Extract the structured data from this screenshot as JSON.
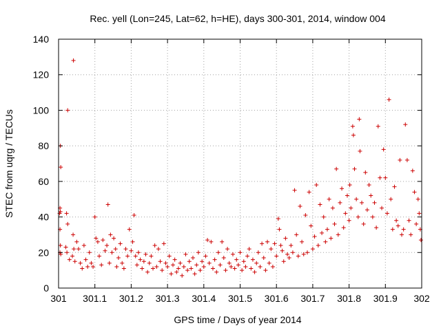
{
  "chart_data": {
    "type": "scatter",
    "title": "Rec. yell (Lon=245, Lat=62, h=HE), days 300-301, 2014, window 004",
    "xlabel": "GPS time / Days of year 2014",
    "ylabel": "STEC from uqrg / TECUs",
    "xlim": [
      301,
      302
    ],
    "ylim": [
      0,
      140
    ],
    "xticks": [
      301,
      301.1,
      301.2,
      301.3,
      301.4,
      301.5,
      301.6,
      301.7,
      301.8,
      301.9,
      302
    ],
    "xtick_labels": [
      "301",
      "301.1",
      "301.2",
      "301.3",
      "301.4",
      "301.5",
      "301.6",
      "301.7",
      "301.8",
      "301.9",
      "302"
    ],
    "yticks": [
      0,
      20,
      40,
      60,
      80,
      100,
      120,
      140
    ],
    "ytick_labels": [
      "0",
      "20",
      "40",
      "60",
      "80",
      "100",
      "120",
      "140"
    ],
    "grid": true,
    "marker": "plus",
    "color": "#cc0000",
    "series": [
      {
        "name": "STEC",
        "points": [
          [
            301.005,
            80
          ],
          [
            301.006,
            68
          ],
          [
            301.004,
            45
          ],
          [
            301.005,
            43
          ],
          [
            301.003,
            42
          ],
          [
            301.004,
            33
          ],
          [
            301.005,
            24
          ],
          [
            301.004,
            20
          ],
          [
            301.006,
            19
          ],
          [
            301.025,
            100
          ],
          [
            301.022,
            42
          ],
          [
            301.025,
            36
          ],
          [
            301.02,
            23
          ],
          [
            301.023,
            20
          ],
          [
            301.03,
            16
          ],
          [
            301.041,
            128
          ],
          [
            301.04,
            30
          ],
          [
            301.042,
            22
          ],
          [
            301.038,
            18
          ],
          [
            301.045,
            15
          ],
          [
            301.05,
            26
          ],
          [
            301.055,
            22
          ],
          [
            301.06,
            14
          ],
          [
            301.065,
            11
          ],
          [
            301.07,
            24
          ],
          [
            301.075,
            16
          ],
          [
            301.08,
            12
          ],
          [
            301.085,
            20
          ],
          [
            301.09,
            14
          ],
          [
            301.095,
            12
          ],
          [
            301.1,
            40
          ],
          [
            301.103,
            28
          ],
          [
            301.108,
            26
          ],
          [
            301.112,
            18
          ],
          [
            301.118,
            13
          ],
          [
            301.122,
            27
          ],
          [
            301.128,
            21
          ],
          [
            301.133,
            24
          ],
          [
            301.136,
            47
          ],
          [
            301.14,
            14
          ],
          [
            301.143,
            30
          ],
          [
            301.147,
            20
          ],
          [
            301.152,
            28
          ],
          [
            301.157,
            22
          ],
          [
            301.16,
            12
          ],
          [
            301.165,
            17
          ],
          [
            301.17,
            25
          ],
          [
            301.175,
            14
          ],
          [
            301.18,
            11
          ],
          [
            301.185,
            22
          ],
          [
            301.19,
            18
          ],
          [
            301.195,
            33
          ],
          [
            301.2,
            21
          ],
          [
            301.204,
            26
          ],
          [
            301.208,
            41
          ],
          [
            301.212,
            18
          ],
          [
            301.216,
            13
          ],
          [
            301.22,
            20
          ],
          [
            301.225,
            16
          ],
          [
            301.23,
            11
          ],
          [
            301.235,
            15
          ],
          [
            301.24,
            19
          ],
          [
            301.245,
            9
          ],
          [
            301.25,
            14
          ],
          [
            301.255,
            18
          ],
          [
            301.26,
            11
          ],
          [
            301.265,
            24
          ],
          [
            301.27,
            12
          ],
          [
            301.275,
            22
          ],
          [
            301.28,
            15
          ],
          [
            301.285,
            10
          ],
          [
            301.29,
            25
          ],
          [
            301.295,
            14
          ],
          [
            301.3,
            12
          ],
          [
            301.305,
            18
          ],
          [
            301.31,
            8
          ],
          [
            301.315,
            13
          ],
          [
            301.32,
            16
          ],
          [
            301.325,
            9
          ],
          [
            301.33,
            11
          ],
          [
            301.335,
            14
          ],
          [
            301.34,
            7
          ],
          [
            301.345,
            12
          ],
          [
            301.35,
            19
          ],
          [
            301.355,
            10
          ],
          [
            301.36,
            15
          ],
          [
            301.365,
            11
          ],
          [
            301.37,
            17
          ],
          [
            301.375,
            8
          ],
          [
            301.38,
            13
          ],
          [
            301.385,
            20
          ],
          [
            301.39,
            10
          ],
          [
            301.395,
            15
          ],
          [
            301.4,
            12
          ],
          [
            301.405,
            18
          ],
          [
            301.41,
            27
          ],
          [
            301.415,
            14
          ],
          [
            301.42,
            26
          ],
          [
            301.425,
            11
          ],
          [
            301.43,
            16
          ],
          [
            301.435,
            9
          ],
          [
            301.44,
            20
          ],
          [
            301.445,
            13
          ],
          [
            301.45,
            26
          ],
          [
            301.455,
            17
          ],
          [
            301.46,
            10
          ],
          [
            301.465,
            22
          ],
          [
            301.47,
            14
          ],
          [
            301.475,
            12
          ],
          [
            301.48,
            19
          ],
          [
            301.485,
            11
          ],
          [
            301.49,
            16
          ],
          [
            301.495,
            13
          ],
          [
            301.5,
            20
          ],
          [
            301.505,
            10
          ],
          [
            301.51,
            15
          ],
          [
            301.515,
            12
          ],
          [
            301.52,
            18
          ],
          [
            301.525,
            22
          ],
          [
            301.53,
            11
          ],
          [
            301.535,
            16
          ],
          [
            301.54,
            9
          ],
          [
            301.545,
            14
          ],
          [
            301.55,
            20
          ],
          [
            301.555,
            12
          ],
          [
            301.56,
            25
          ],
          [
            301.565,
            17
          ],
          [
            301.57,
            10
          ],
          [
            301.575,
            26
          ],
          [
            301.58,
            14
          ],
          [
            301.585,
            22
          ],
          [
            301.59,
            12
          ],
          [
            301.595,
            25
          ],
          [
            301.6,
            18
          ],
          [
            301.605,
            39
          ],
          [
            301.608,
            33
          ],
          [
            301.612,
            24
          ],
          [
            301.616,
            21
          ],
          [
            301.62,
            15
          ],
          [
            301.625,
            28
          ],
          [
            301.63,
            19
          ],
          [
            301.635,
            17
          ],
          [
            301.64,
            24
          ],
          [
            301.645,
            20
          ],
          [
            301.65,
            55
          ],
          [
            301.655,
            30
          ],
          [
            301.66,
            18
          ],
          [
            301.665,
            46
          ],
          [
            301.67,
            26
          ],
          [
            301.675,
            19
          ],
          [
            301.68,
            41
          ],
          [
            301.685,
            20
          ],
          [
            301.69,
            54
          ],
          [
            301.695,
            35
          ],
          [
            301.7,
            22
          ],
          [
            301.705,
            29
          ],
          [
            301.71,
            58
          ],
          [
            301.715,
            24
          ],
          [
            301.72,
            47
          ],
          [
            301.725,
            31
          ],
          [
            301.73,
            40
          ],
          [
            301.735,
            26
          ],
          [
            301.74,
            33
          ],
          [
            301.745,
            50
          ],
          [
            301.75,
            28
          ],
          [
            301.755,
            45
          ],
          [
            301.76,
            36
          ],
          [
            301.765,
            67
          ],
          [
            301.77,
            30
          ],
          [
            301.775,
            48
          ],
          [
            301.78,
            56
          ],
          [
            301.785,
            34
          ],
          [
            301.79,
            42
          ],
          [
            301.795,
            52
          ],
          [
            301.8,
            38
          ],
          [
            301.802,
            58
          ],
          [
            301.805,
            45
          ],
          [
            301.81,
            91
          ],
          [
            301.812,
            86
          ],
          [
            301.815,
            67
          ],
          [
            301.82,
            50
          ],
          [
            301.825,
            40
          ],
          [
            301.828,
            95
          ],
          [
            301.83,
            77
          ],
          [
            301.835,
            48
          ],
          [
            301.84,
            36
          ],
          [
            301.845,
            65
          ],
          [
            301.85,
            44
          ],
          [
            301.855,
            58
          ],
          [
            301.86,
            52
          ],
          [
            301.865,
            40
          ],
          [
            301.87,
            48
          ],
          [
            301.875,
            34
          ],
          [
            301.88,
            91
          ],
          [
            301.885,
            62
          ],
          [
            301.89,
            45
          ],
          [
            301.895,
            78
          ],
          [
            301.9,
            62
          ],
          [
            301.905,
            42
          ],
          [
            301.91,
            106
          ],
          [
            301.915,
            50
          ],
          [
            301.92,
            33
          ],
          [
            301.925,
            57
          ],
          [
            301.93,
            38
          ],
          [
            301.935,
            35
          ],
          [
            301.94,
            72
          ],
          [
            301.945,
            30
          ],
          [
            301.95,
            33
          ],
          [
            301.955,
            92
          ],
          [
            301.96,
            72
          ],
          [
            301.965,
            38
          ],
          [
            301.97,
            30
          ],
          [
            301.975,
            66
          ],
          [
            301.98,
            54
          ],
          [
            301.985,
            36
          ],
          [
            301.99,
            50
          ],
          [
            301.993,
            42
          ],
          [
            301.996,
            33
          ],
          [
            301.998,
            27
          ]
        ]
      }
    ]
  }
}
